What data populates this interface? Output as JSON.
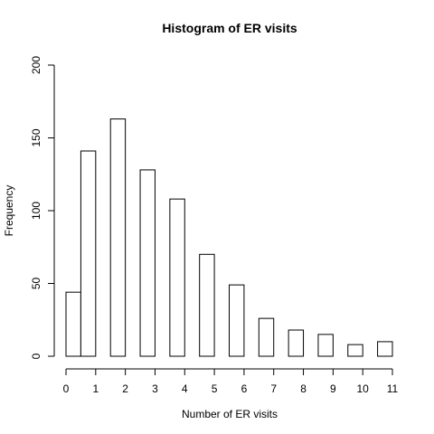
{
  "chart_data": {
    "type": "bar",
    "title": "Histogram of ER visits",
    "xlabel": "Number of ER visits",
    "ylabel": "Frequency",
    "ylim": [
      0,
      200
    ],
    "yticks": [
      "0",
      "50",
      "100",
      "150",
      "200"
    ],
    "xticks": [
      "0",
      "1",
      "2",
      "3",
      "4",
      "5",
      "6",
      "7",
      "8",
      "9",
      "10",
      "11"
    ],
    "bins": [
      {
        "start": 0.0,
        "end": 0.5,
        "count": 44
      },
      {
        "start": 0.5,
        "end": 1.0,
        "count": 141
      },
      {
        "start": 1.5,
        "end": 2.0,
        "count": 163
      },
      {
        "start": 2.5,
        "end": 3.0,
        "count": 128
      },
      {
        "start": 3.5,
        "end": 4.0,
        "count": 108
      },
      {
        "start": 4.5,
        "end": 5.0,
        "count": 70
      },
      {
        "start": 5.5,
        "end": 6.0,
        "count": 49
      },
      {
        "start": 6.5,
        "end": 7.0,
        "count": 26
      },
      {
        "start": 7.5,
        "end": 8.0,
        "count": 18
      },
      {
        "start": 8.5,
        "end": 9.0,
        "count": 15
      },
      {
        "start": 9.5,
        "end": 10.0,
        "count": 8
      },
      {
        "start": 10.5,
        "end": 11.0,
        "count": 10
      }
    ],
    "grid": false,
    "legend": "none"
  }
}
